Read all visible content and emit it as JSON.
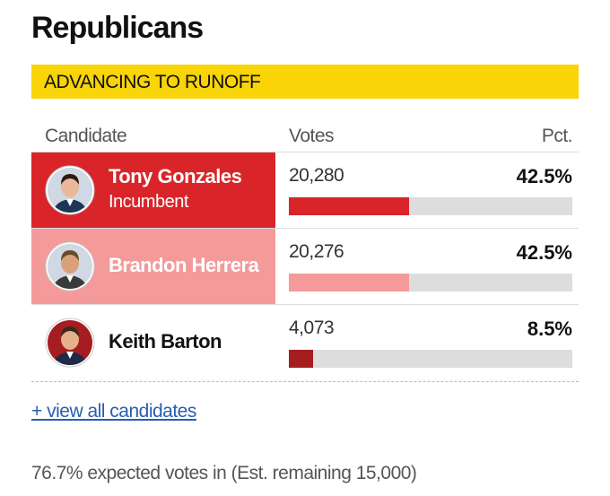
{
  "header": {
    "title": "Republicans",
    "banner": "ADVANCING TO RUNOFF"
  },
  "table": {
    "columns": [
      "Candidate",
      "Votes",
      "Pct."
    ],
    "rows": [
      {
        "name": "Tony Gonzales",
        "note": "Incumbent",
        "votes": "20,280",
        "pct": "42.5%"
      },
      {
        "name": "Brandon Herrera",
        "votes": "20,276",
        "pct": "42.5%"
      },
      {
        "name": "Keith Barton",
        "votes": "4,073",
        "pct": "8.5%"
      }
    ]
  },
  "footer": {
    "link": "+ view all candidates",
    "note": "76.7% expected votes in (Est. remaining 15,000)"
  }
}
